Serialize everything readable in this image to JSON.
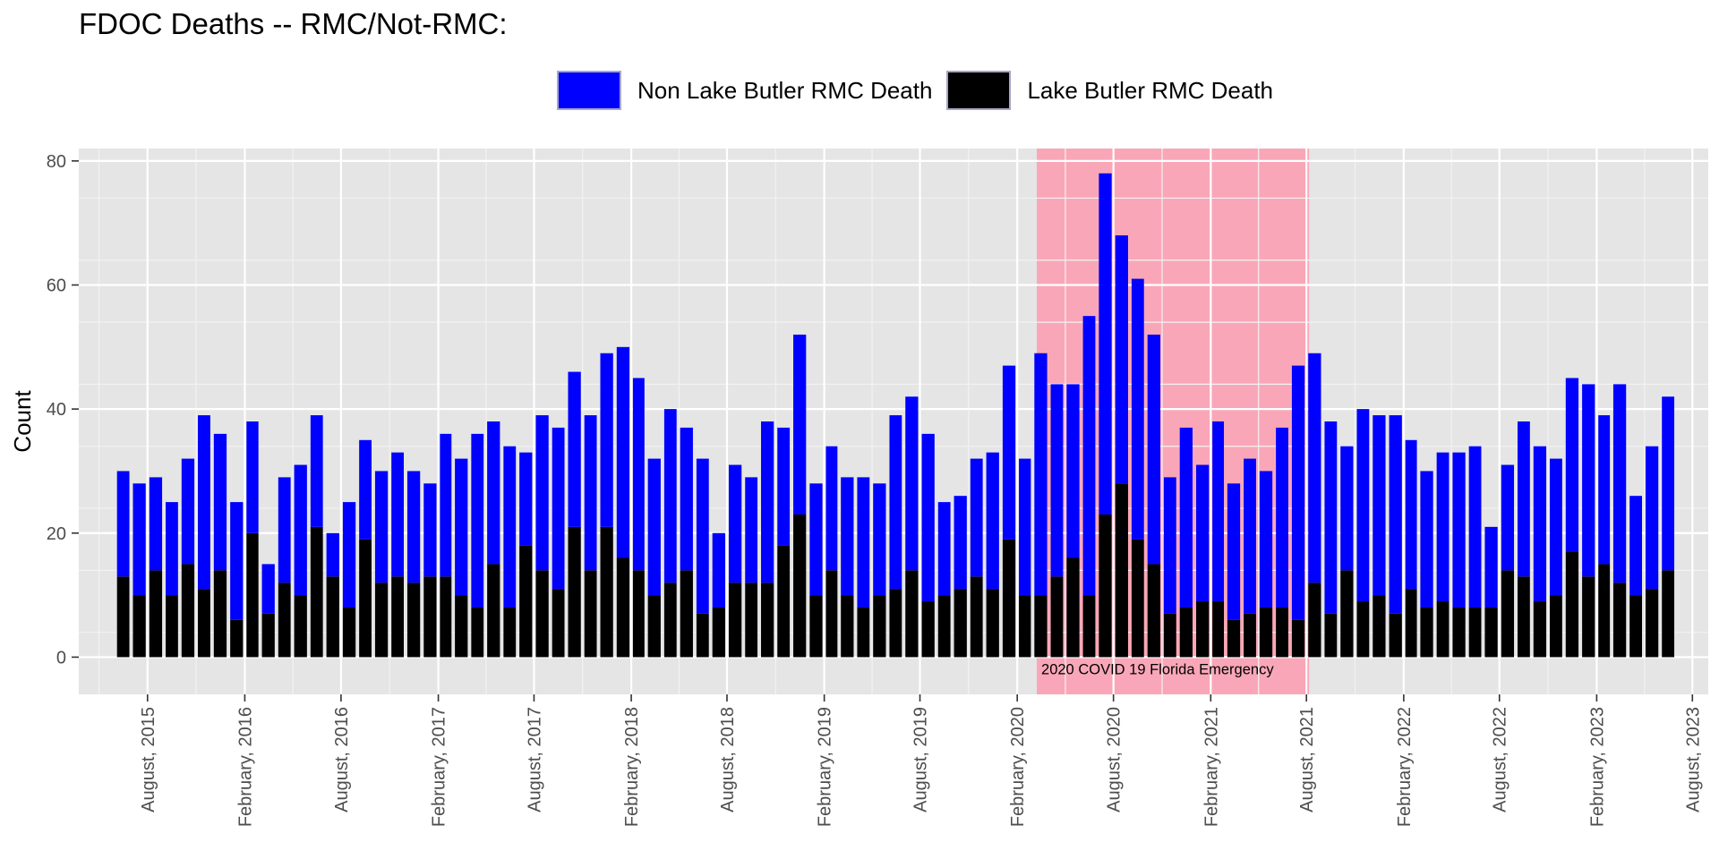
{
  "colors": {
    "non_rmc": "#0000ff",
    "rmc": "#000000",
    "covid_band": "#f9a7b8",
    "panel": "#e5e5e5",
    "grid_major": "#ffffff",
    "grid_minor": "#f2f2f2"
  },
  "legend": {
    "items": [
      {
        "label": "Non Lake Butler RMC Death",
        "color": "#0000ff"
      },
      {
        "label": "Lake Butler RMC Death",
        "color": "#000000"
      }
    ]
  },
  "chart_data": {
    "type": "bar",
    "stacked": true,
    "title": "FDOC Deaths -- RMC/Not-RMC:",
    "xlabel": "",
    "ylabel": "Count",
    "ylim": [
      -6,
      82
    ],
    "yticks": [
      0,
      20,
      40,
      60,
      80
    ],
    "grid": true,
    "legend_position": "top",
    "x_start": "2015-06",
    "x_end": "2022-12",
    "xlim": [
      "2015-03-24",
      "2023-08-31"
    ],
    "x_ticks": [
      {
        "date": "2015-08-01",
        "label": "August, 2015"
      },
      {
        "date": "2016-02-01",
        "label": "February, 2016"
      },
      {
        "date": "2016-08-01",
        "label": "August, 2016"
      },
      {
        "date": "2017-02-01",
        "label": "February, 2017"
      },
      {
        "date": "2017-08-01",
        "label": "August, 2017"
      },
      {
        "date": "2018-02-01",
        "label": "February, 2018"
      },
      {
        "date": "2018-08-01",
        "label": "August, 2018"
      },
      {
        "date": "2019-02-01",
        "label": "February, 2019"
      },
      {
        "date": "2019-08-01",
        "label": "August, 2019"
      },
      {
        "date": "2020-02-01",
        "label": "February, 2020"
      },
      {
        "date": "2020-08-01",
        "label": "August, 2020"
      },
      {
        "date": "2021-02-01",
        "label": "February, 2021"
      },
      {
        "date": "2021-08-01",
        "label": "August, 2021"
      },
      {
        "date": "2022-02-01",
        "label": "February, 2022"
      },
      {
        "date": "2022-08-01",
        "label": "August, 2022"
      },
      {
        "date": "2023-02-01",
        "label": "February, 2023"
      },
      {
        "date": "2023-08-01",
        "label": "August, 2023"
      }
    ],
    "series": [
      {
        "name": "Lake Butler RMC Death",
        "color": "#000000",
        "values": [
          13,
          10,
          14,
          10,
          15,
          11,
          14,
          6,
          20,
          7,
          12,
          10,
          21,
          13,
          8,
          19,
          12,
          13,
          12,
          13,
          13,
          10,
          8,
          15,
          8,
          18,
          14,
          11,
          21,
          14,
          21,
          16,
          14,
          10,
          12,
          14,
          7,
          8,
          12,
          12,
          12,
          18,
          23,
          10,
          14,
          10,
          8,
          10,
          11,
          14,
          9,
          10,
          11,
          13,
          11,
          19,
          10,
          10,
          13,
          16,
          10,
          23,
          28,
          19,
          15,
          7,
          8,
          9,
          9,
          6,
          7,
          8,
          8,
          6,
          12,
          7,
          14,
          9,
          10,
          7,
          11,
          8,
          9,
          8,
          8,
          8,
          14,
          13,
          9,
          10,
          17,
          13,
          15,
          12,
          10,
          11,
          14
        ]
      },
      {
        "name": "Non Lake Butler RMC Death",
        "color": "#0000ff",
        "values": [
          17,
          18,
          15,
          15,
          17,
          28,
          22,
          19,
          18,
          8,
          17,
          21,
          18,
          7,
          17,
          16,
          18,
          20,
          18,
          15,
          23,
          22,
          28,
          23,
          26,
          15,
          25,
          26,
          25,
          25,
          28,
          34,
          31,
          22,
          28,
          23,
          25,
          12,
          19,
          17,
          26,
          19,
          29,
          18,
          20,
          19,
          21,
          18,
          28,
          28,
          27,
          15,
          15,
          19,
          22,
          28,
          22,
          39,
          31,
          28,
          45,
          55,
          40,
          42,
          37,
          22,
          29,
          22,
          29,
          22,
          25,
          22,
          29,
          41,
          37,
          31,
          20,
          31,
          29,
          32,
          24,
          22,
          24,
          25,
          26,
          13,
          17,
          25,
          25,
          22,
          28,
          31,
          24,
          32,
          16,
          23,
          28
        ]
      }
    ],
    "annotations": [
      {
        "label": "2020 COVID 19 Florida Emergency",
        "start": "2020-03-09",
        "end": "2021-08-06",
        "color": "#f9a7b8"
      }
    ]
  }
}
